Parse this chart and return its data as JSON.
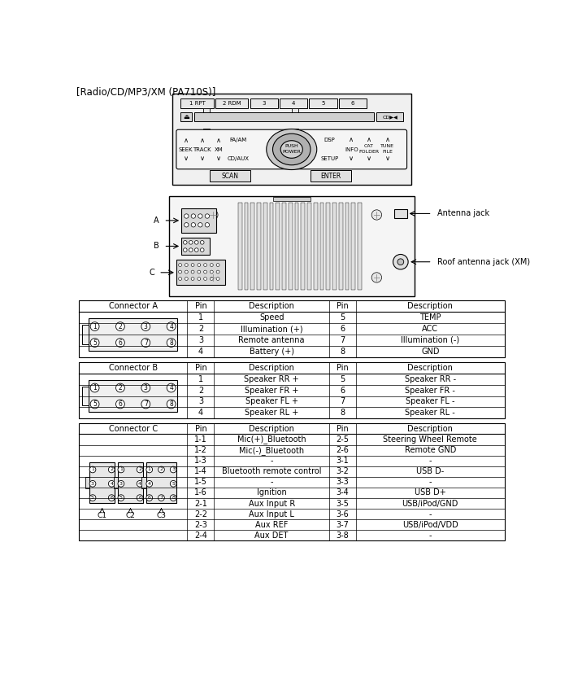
{
  "title": "[Radio/CD/MP3/XM (PA710S)]",
  "connector_a": {
    "header": [
      "Connector A",
      "Pin",
      "Description",
      "Pin",
      "Description"
    ],
    "rows": [
      [
        "1",
        "Speed",
        "5",
        "TEMP"
      ],
      [
        "2",
        "Illumination (+)",
        "6",
        "ACC"
      ],
      [
        "3",
        "Remote antenna",
        "7",
        "Illumination (-)"
      ],
      [
        "4",
        "Battery (+)",
        "8",
        "GND"
      ]
    ]
  },
  "connector_b": {
    "header": [
      "Connector B",
      "Pin",
      "Description",
      "Pin",
      "Description"
    ],
    "rows": [
      [
        "1",
        "Speaker RR +",
        "5",
        "Speaker RR -"
      ],
      [
        "2",
        "Speaker FR +",
        "6",
        "Speaker FR -"
      ],
      [
        "3",
        "Speaker FL +",
        "7",
        "Speaker FL -"
      ],
      [
        "4",
        "Speaker RL +",
        "8",
        "Speaker RL -"
      ]
    ]
  },
  "connector_c": {
    "header": [
      "Connector C",
      "Pin",
      "Description",
      "Pin",
      "Description"
    ],
    "rows": [
      [
        "1-1",
        "Mic(+)_Bluetooth",
        "2-5",
        "Steering Wheel Remote"
      ],
      [
        "1-2",
        "Mic(-)_Bluetooth",
        "2-6",
        "Remote GND"
      ],
      [
        "1-3",
        "-",
        "3-1",
        "-"
      ],
      [
        "1-4",
        "Bluetooth remote control",
        "3-2",
        "USB D-"
      ],
      [
        "1-5",
        "-",
        "3-3",
        "-"
      ],
      [
        "1-6",
        "Ignition",
        "3-4",
        "USB D+"
      ],
      [
        "2-1",
        "Aux Input R",
        "3-5",
        "USB/iPod/GND"
      ],
      [
        "2-2",
        "Aux Input L",
        "3-6",
        "-"
      ],
      [
        "2-3",
        "Aux REF",
        "3-7",
        "USB/iPod/VDD"
      ],
      [
        "2-4",
        "Aux DET",
        "3-8",
        "-"
      ]
    ]
  },
  "antenna_label": "Antenna jack",
  "roof_antenna_label": "Roof antenna jack (XM)"
}
